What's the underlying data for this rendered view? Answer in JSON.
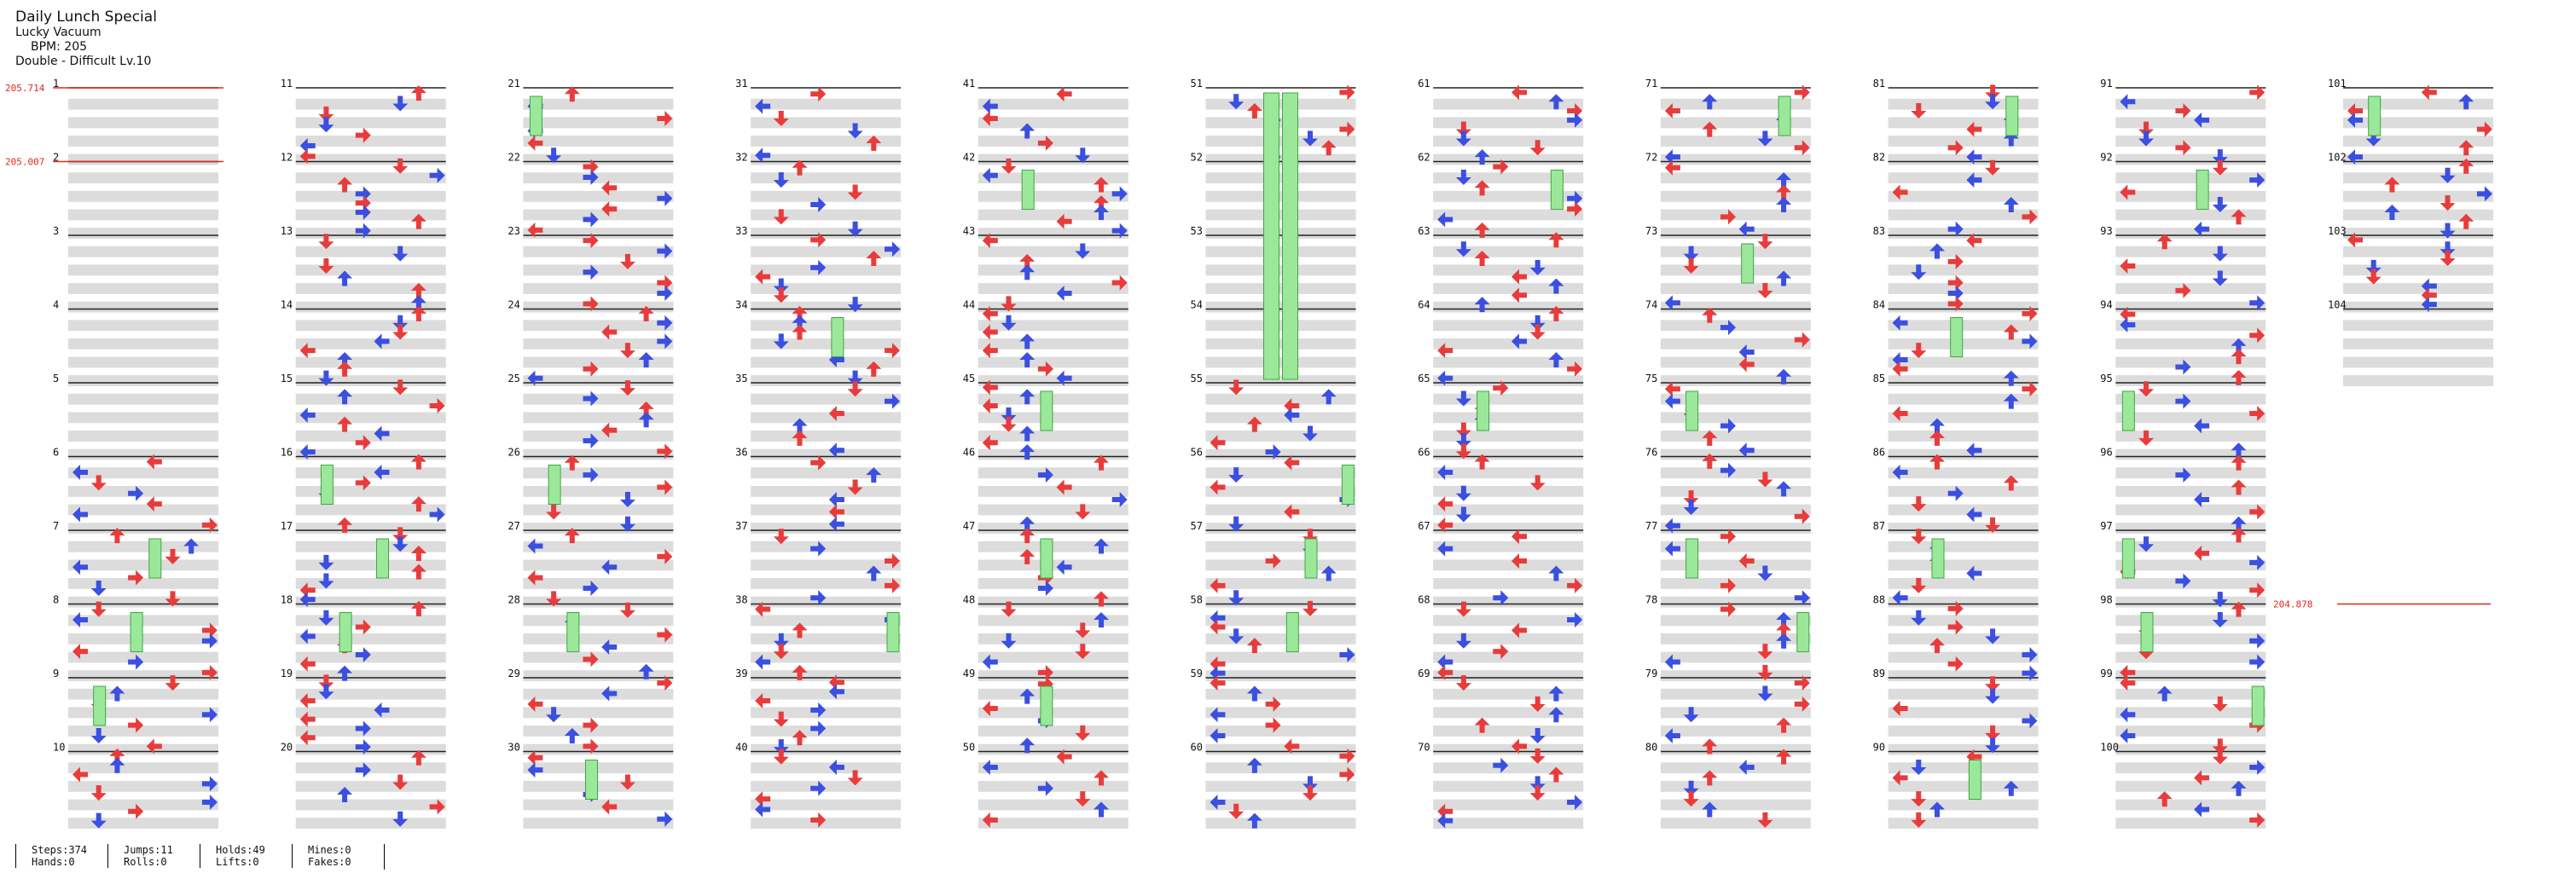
{
  "header": {
    "title": "Daily Lunch Special",
    "artist": "Lucky Vacuum",
    "bpm": "BPM: 205",
    "difficulty": "Double - Difficult  Lv.10"
  },
  "colors": {
    "red_arrow": "#e83c3c",
    "blue_arrow": "#3b4fe0",
    "hold": "#9be89b",
    "hold_border": "#3fa63f",
    "row_stripe": "#dcdcdc",
    "measure_line": "#222222",
    "bpm_marker": "#e0281e"
  },
  "chart": {
    "measure_count": 104,
    "measures_per_column": 10,
    "bpm_changes": [
      {
        "measure": 1,
        "label": "205.714"
      },
      {
        "measure": 2,
        "label": "205.007"
      },
      {
        "measure": 98,
        "label": "204.878"
      }
    ]
  },
  "stats": [
    [
      "Steps:374",
      "Hands:0"
    ],
    [
      "Jumps:11",
      "Rolls:0"
    ],
    [
      "Holds:49",
      "Lifts:0"
    ],
    [
      "Mines:0",
      "Fakes:0"
    ]
  ]
}
